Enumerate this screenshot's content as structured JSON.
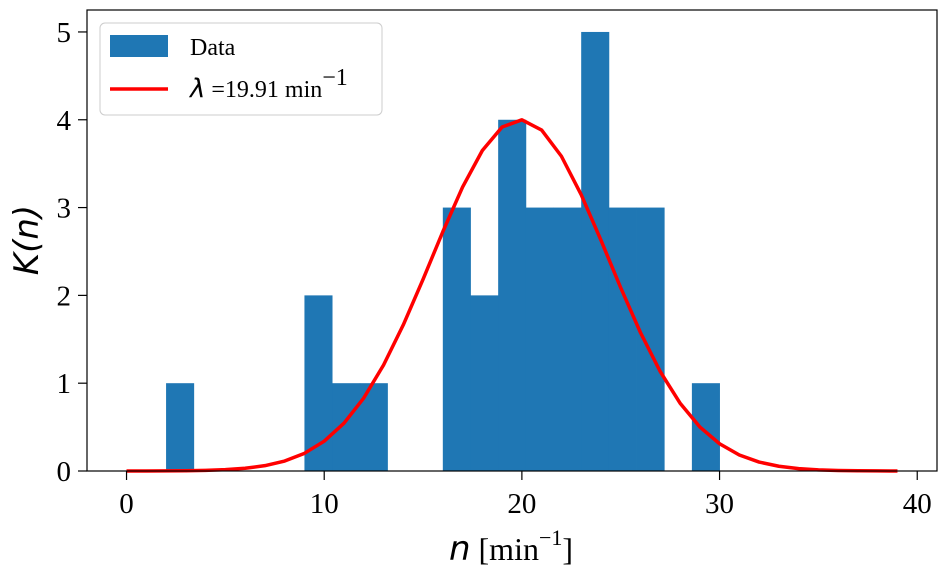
{
  "chart_data": {
    "type": "bar",
    "bars": [
      {
        "x0": 2.0,
        "x1": 3.4,
        "value": 1
      },
      {
        "x0": 9.0,
        "x1": 10.4,
        "value": 2
      },
      {
        "x0": 10.4,
        "x1": 11.8,
        "value": 1
      },
      {
        "x0": 11.8,
        "x1": 13.2,
        "value": 1
      },
      {
        "x0": 16.0,
        "x1": 17.4,
        "value": 3
      },
      {
        "x0": 17.4,
        "x1": 18.8,
        "value": 2
      },
      {
        "x0": 18.8,
        "x1": 20.2,
        "value": 4
      },
      {
        "x0": 20.2,
        "x1": 21.6,
        "value": 3
      },
      {
        "x0": 21.6,
        "x1": 23.0,
        "value": 3
      },
      {
        "x0": 23.0,
        "x1": 24.4,
        "value": 5
      },
      {
        "x0": 24.4,
        "x1": 25.8,
        "value": 3
      },
      {
        "x0": 25.8,
        "x1": 27.2,
        "value": 3
      },
      {
        "x0": 28.6,
        "x1": 30.0,
        "value": 1
      }
    ],
    "curve": {
      "name_math": "λ",
      "name_text": " =19.91 min",
      "name_sup": "−1",
      "lambda": 19.91,
      "scale": 4.0,
      "x": [
        0,
        1,
        2,
        3,
        4,
        5,
        6,
        7,
        8,
        9,
        10,
        11,
        12,
        13,
        14,
        15,
        16,
        17,
        18,
        19,
        20,
        21,
        22,
        23,
        24,
        25,
        26,
        27,
        28,
        29,
        30,
        31,
        32,
        33,
        34,
        35,
        36,
        37,
        38,
        39
      ]
    },
    "series_names": {
      "bars": "Data"
    },
    "xlabel_math": "n",
    "xlabel_text": " [min",
    "xlabel_sup": "−1",
    "xlabel_close": "]",
    "ylabel": "K(n)",
    "xticks": [
      0,
      10,
      20,
      30,
      40
    ],
    "yticks": [
      0,
      1,
      2,
      3,
      4,
      5
    ],
    "xlim": [
      -2,
      41
    ],
    "ylim": [
      0,
      5.25
    ],
    "grid": false,
    "legend_position": "top-left",
    "colors": {
      "bars": "#1f77b4",
      "curve": "#ff0000"
    }
  }
}
